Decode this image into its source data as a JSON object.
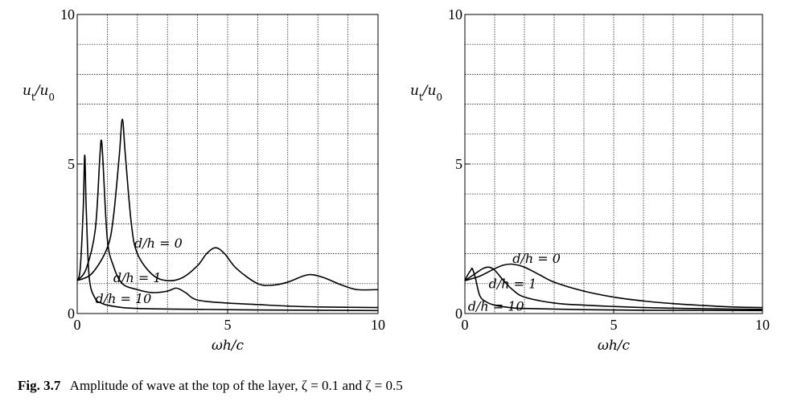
{
  "caption": {
    "label": "Fig. 3.7",
    "text": "Amplitude of wave at the top of the layer, ζ = 0.1 and ζ = 0.5"
  },
  "chart_data": [
    {
      "type": "line",
      "xlabel": "ωh/c",
      "ylabel": "u_t/u_0",
      "xlim": [
        0,
        10
      ],
      "ylim": [
        0,
        10
      ],
      "x_ticks": [
        0,
        5,
        10
      ],
      "y_ticks": [
        0,
        5,
        10
      ],
      "grid": true,
      "series": [
        {
          "name": "d/h = 0",
          "x": [
            0,
            0.5,
            1.0,
            1.2,
            1.4,
            1.5,
            1.6,
            1.8,
            2.0,
            2.5,
            3.0,
            3.5,
            4.0,
            4.3,
            4.6,
            4.9,
            5.3,
            6.0,
            6.5,
            7.0,
            7.5,
            7.8,
            8.2,
            8.8,
            9.3,
            10
          ],
          "y": [
            1.1,
            1.35,
            2.2,
            3.2,
            5.3,
            6.5,
            5.3,
            3.0,
            2.0,
            1.3,
            1.1,
            1.2,
            1.6,
            2.0,
            2.2,
            2.0,
            1.5,
            1.0,
            0.95,
            1.05,
            1.25,
            1.3,
            1.2,
            0.95,
            0.8,
            0.8
          ]
        },
        {
          "name": "d/h = 1",
          "x": [
            0,
            0.3,
            0.6,
            0.75,
            0.8,
            0.85,
            1.0,
            1.2,
            1.5,
            2.0,
            2.5,
            3.0,
            3.3,
            3.6,
            4.0,
            5.0,
            6.0,
            7.0,
            8.0,
            10
          ],
          "y": [
            1.1,
            1.5,
            2.8,
            5.2,
            5.8,
            5.2,
            2.5,
            1.6,
            1.0,
            0.8,
            0.7,
            0.75,
            0.85,
            0.7,
            0.45,
            0.35,
            0.3,
            0.25,
            0.22,
            0.2
          ]
        },
        {
          "name": "d/h = 10",
          "x": [
            0,
            0.1,
            0.2,
            0.25,
            0.3,
            0.4,
            0.6,
            0.8,
            1.0,
            1.5,
            2.0,
            3.0,
            4.0,
            6.0,
            8.0,
            10
          ],
          "y": [
            1.1,
            1.5,
            3.5,
            5.3,
            3.5,
            1.2,
            0.5,
            0.35,
            0.28,
            0.2,
            0.17,
            0.15,
            0.14,
            0.12,
            0.11,
            0.1
          ]
        }
      ],
      "annotations": [
        {
          "text": "d/h = 0",
          "x": 1.9,
          "y": 2.2
        },
        {
          "text": "d/h = 1",
          "x": 1.2,
          "y": 1.05
        },
        {
          "text": "d/h = 10",
          "x": 0.6,
          "y": 0.35
        }
      ]
    },
    {
      "type": "line",
      "xlabel": "ωh/c",
      "ylabel": "u_t/u_0",
      "xlim": [
        0,
        10
      ],
      "ylim": [
        0,
        10
      ],
      "x_ticks": [
        0,
        5,
        10
      ],
      "y_ticks": [
        0,
        5,
        10
      ],
      "grid": true,
      "series": [
        {
          "name": "d/h = 0",
          "x": [
            0,
            0.5,
            1.0,
            1.3,
            1.6,
            2.0,
            2.5,
            3.0,
            4.0,
            5.0,
            6.0,
            7.0,
            8.0,
            9.0,
            10
          ],
          "y": [
            1.1,
            1.25,
            1.5,
            1.62,
            1.65,
            1.55,
            1.3,
            1.05,
            0.75,
            0.55,
            0.42,
            0.33,
            0.27,
            0.22,
            0.2
          ]
        },
        {
          "name": "d/h = 1",
          "x": [
            0,
            0.3,
            0.6,
            0.8,
            1.0,
            1.3,
            1.6,
            2.0,
            3.0,
            4.0,
            6.0,
            8.0,
            10
          ],
          "y": [
            1.1,
            1.3,
            1.5,
            1.55,
            1.45,
            1.1,
            0.8,
            0.55,
            0.35,
            0.28,
            0.2,
            0.16,
            0.14
          ]
        },
        {
          "name": "d/h = 10",
          "x": [
            0,
            0.1,
            0.2,
            0.25,
            0.35,
            0.5,
            0.7,
            1.0,
            1.5,
            2.0,
            4.0,
            6.0,
            10
          ],
          "y": [
            1.1,
            1.3,
            1.45,
            1.5,
            1.2,
            0.6,
            0.4,
            0.28,
            0.2,
            0.17,
            0.13,
            0.11,
            0.1
          ]
        }
      ],
      "annotations": [
        {
          "text": "d/h = 0",
          "x": 1.6,
          "y": 1.7
        },
        {
          "text": "d/h = 1",
          "x": 0.8,
          "y": 0.85
        },
        {
          "text": "d/h = 10",
          "x": 0.1,
          "y": 0.1
        }
      ]
    }
  ]
}
